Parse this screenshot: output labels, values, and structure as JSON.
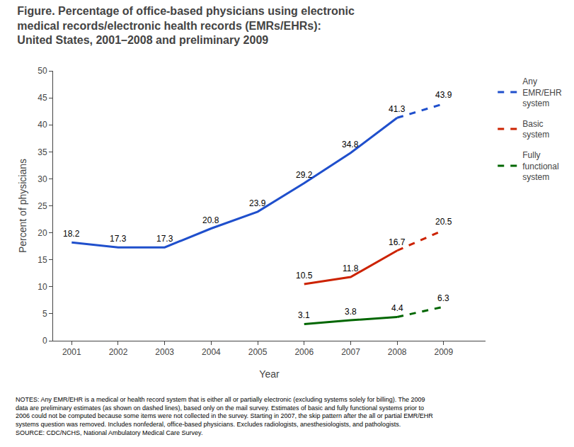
{
  "chart_data": {
    "type": "line",
    "title": "Figure. Percentage of office-based physicians using electronic\nmedical records/electronic health records (EMRs/EHRs):\nUnited States, 2001–2008 and preliminary 2009",
    "xlabel": "Year",
    "ylabel": "Percent of physicians",
    "x": [
      2001,
      2002,
      2003,
      2004,
      2005,
      2006,
      2007,
      2008,
      2009
    ],
    "xlim": [
      2000.6,
      2009.9
    ],
    "xticks": [
      2001,
      2002,
      2003,
      2004,
      2005,
      2006,
      2007,
      2008,
      2009
    ],
    "ylim": [
      0,
      50
    ],
    "yticks": [
      0,
      5,
      10,
      15,
      20,
      25,
      30,
      35,
      40,
      45,
      50
    ],
    "grid": false,
    "legend": "right",
    "data_labels": true,
    "series": [
      {
        "name": "Any\nEMR/EHR\nsystem",
        "color": "#1F4FCC",
        "line_style": "solid",
        "values": [
          18.2,
          17.3,
          17.3,
          20.8,
          23.9,
          29.2,
          34.8,
          41.3,
          null
        ]
      },
      {
        "name": "Any\nEMR/EHR\nsystem",
        "color": "#1F4FCC",
        "line_style": "dashed",
        "values": [
          null,
          null,
          null,
          null,
          null,
          null,
          null,
          41.3,
          43.9
        ]
      },
      {
        "name": "Basic\nsystem",
        "color": "#CC2200",
        "line_style": "solid",
        "values": [
          null,
          null,
          null,
          null,
          null,
          10.5,
          11.8,
          16.7,
          null
        ]
      },
      {
        "name": "Basic\nsystem",
        "color": "#CC2200",
        "line_style": "dashed",
        "values": [
          null,
          null,
          null,
          null,
          null,
          null,
          null,
          16.7,
          20.5
        ]
      },
      {
        "name": "Fully\nfunctional\nsystem",
        "color": "#006600",
        "line_style": "solid",
        "values": [
          null,
          null,
          null,
          null,
          null,
          3.1,
          3.8,
          4.4,
          null
        ]
      },
      {
        "name": "Fully\nfunctional\nsystem",
        "color": "#006600",
        "line_style": "dashed",
        "values": [
          null,
          null,
          null,
          null,
          null,
          null,
          null,
          4.4,
          6.3
        ]
      }
    ],
    "footnote": "NOTES: Any EMR/EHR is a medical or health record system that is either all or partially electronic (excluding systems solely for billing). The 2009\ndata are preliminary estimates (as shown on dashed lines), based only on the mail survey. Estimates of basic and fully functional systems prior to\n2006 could not be computed because some items were not collected in the survey. Starting in 2007, the skip pattern after the all or partial EMR/EHR\nsystems question was removed. Includes nonfederal, office-based physicians. Excludes radiologists, anesthesiologists, and pathologists.\nSOURCE: CDC/NCHS, National Ambulatory Medical Care Survey."
  }
}
